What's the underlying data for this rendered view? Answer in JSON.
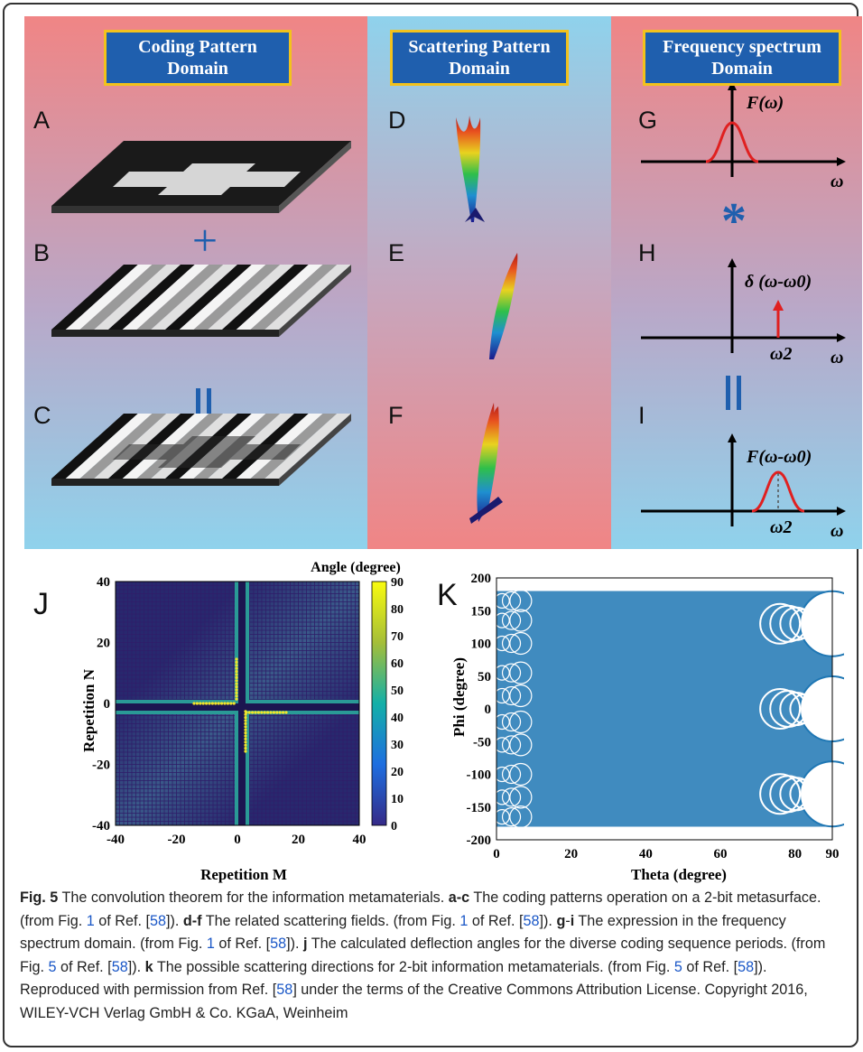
{
  "panels": {
    "col1_header": [
      "Coding Pattern",
      "Domain"
    ],
    "col2_header": [
      "Scattering Pattern",
      "Domain"
    ],
    "col3_header": [
      "Frequency spectrum",
      "Domain"
    ],
    "letters": [
      "A",
      "B",
      "C",
      "D",
      "E",
      "F",
      "G",
      "H",
      "I",
      "J",
      "K"
    ],
    "op_plus": "+",
    "op_equals": "||",
    "op_conv": "*",
    "g_label": "F(ω)",
    "h_label": "δ (ω-ω0)",
    "i_label": "F(ω-ω0)",
    "omega": "ω",
    "omega2": "ω2",
    "colors": {
      "red_bg": "#f08080",
      "blue_bg": "#8fd0ea",
      "header": "#1f5fae",
      "header_border": "#f2c21c",
      "op_blue": "#1f5fae",
      "curve": "#e02020"
    }
  },
  "chart_data": [
    {
      "type": "heatmap",
      "title": "Angle (degree)",
      "xlabel": "Repetition M",
      "ylabel": "Repetition N",
      "xlim": [
        -40,
        40
      ],
      "ylim": [
        -40,
        40
      ],
      "xticks": [
        "-40",
        "-20",
        "0",
        "20",
        "40"
      ],
      "yticks": [
        "40",
        "20",
        "0",
        "-20",
        "-40"
      ],
      "colorbar": {
        "range": [
          0,
          90
        ],
        "ticks": [
          "90",
          "80",
          "70",
          "60",
          "50",
          "40",
          "30",
          "20",
          "10",
          "0"
        ]
      }
    },
    {
      "type": "scatter",
      "xlabel": "Theta (degree)",
      "ylabel": "Phi (degree)",
      "xlim": [
        0,
        90
      ],
      "ylim": [
        -200,
        200
      ],
      "xticks": [
        "0",
        "20",
        "40",
        "60",
        "80",
        "90"
      ],
      "yticks": [
        "200",
        "150",
        "100",
        "50",
        "0",
        "-50",
        "-100",
        "-150",
        "-200"
      ],
      "marker_color": "#1f77b4"
    }
  ],
  "caption": {
    "fig": "Fig. 5",
    "title": " The convolution theorem for the information metamaterials. ",
    "a": "a-c",
    "t1": " The coding patterns operation on a 2-bit metasurface. (from Fig. ",
    "n1": "1",
    "t1b": " of Ref. [",
    "r58": "58",
    "t1c": "]). ",
    "d": "d-f",
    "t2": " The related scattering fields. (from Fig. ",
    "t2b": " of Ref. [",
    "t2c": "]). ",
    "g": "g",
    "dash": "-",
    "i": "i",
    "t3": " The expression in the frequency spectrum domain. (from Fig. ",
    "t3b": " of Ref. [",
    "t3c": "]). ",
    "j": "j",
    "t4": " The calculated deflection angles for the diverse coding sequence periods. (from Fig. ",
    "n5": "5",
    "t4b": " of Ref. [",
    "t4c": "]). ",
    "k": "k",
    "t5": " The possible scattering directions for 2-bit information metamaterials. (from Fig. ",
    "t5b": " of Ref. [",
    "t5c": "]). Reproduced with permission from Ref. [",
    "t5d": "] under the terms of the Creative Commons Attribution License. Copyright 2016, WILEY-VCH Verlag GmbH & Co. KGaA, Weinheim"
  }
}
